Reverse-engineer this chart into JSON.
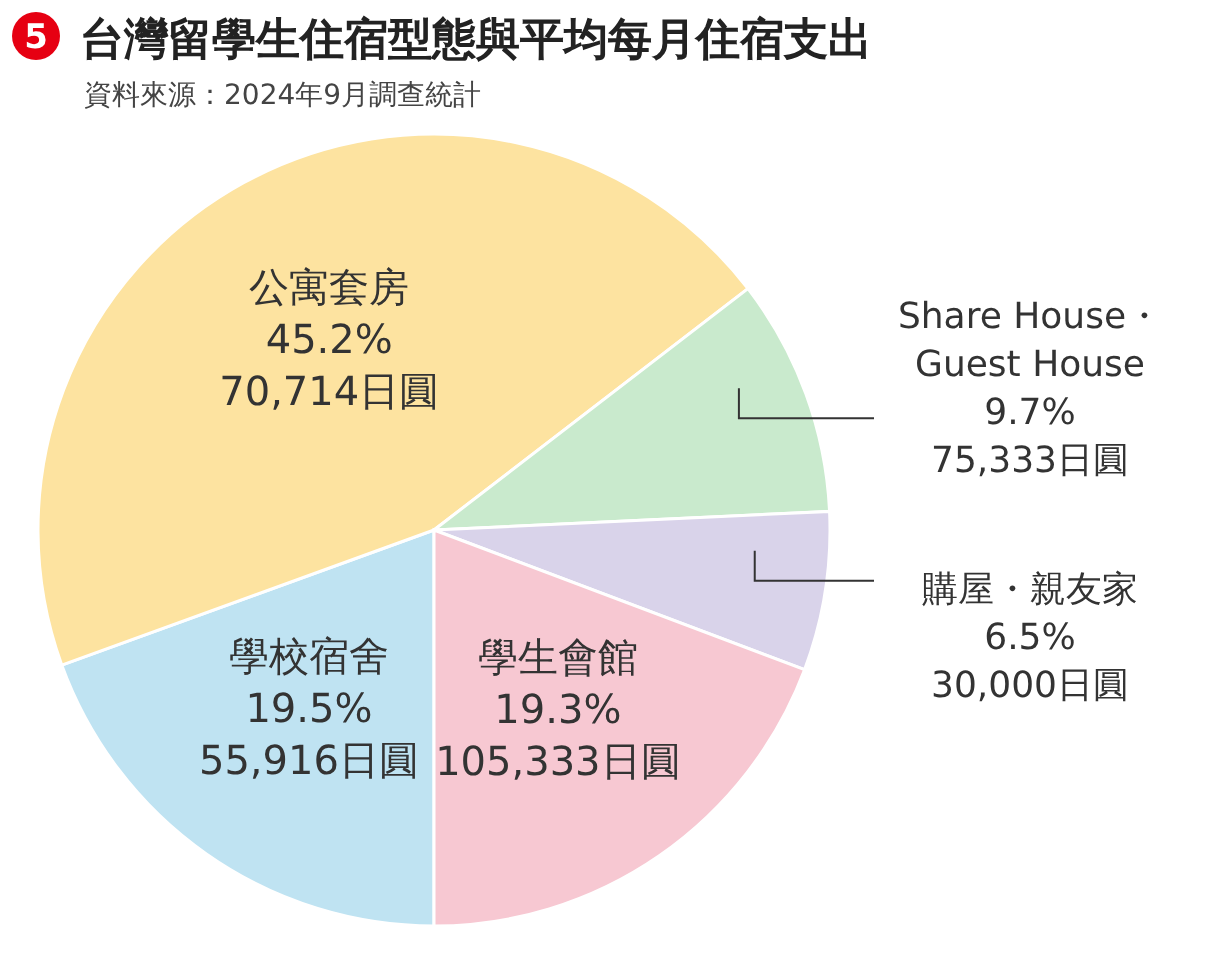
{
  "chart_data": {
    "type": "pie",
    "title": "台灣留學生住宿型態與平均每月住宿支出",
    "subtitle": "資料來源：2024年9月調查統計",
    "annotations": [
      "5"
    ],
    "categories": [
      "學校宿舍",
      "公寓套房",
      "Share House・\nGuest House",
      "購屋・親友家",
      "學生會館"
    ],
    "values": [
      19.5,
      45.2,
      9.7,
      6.5,
      19.3
    ],
    "colors": [
      "#bfe3f2",
      "#fde3a0",
      "#c9eacd",
      "#d9d3ea",
      "#f7c8d2"
    ],
    "value_labels": [
      "19.5%\n55,916日圓",
      "45.2%\n70,714日圓",
      "9.7%\n75,333日圓",
      "6.5%\n30,000日圓",
      "19.3%\n105,333日圓"
    ]
  }
}
